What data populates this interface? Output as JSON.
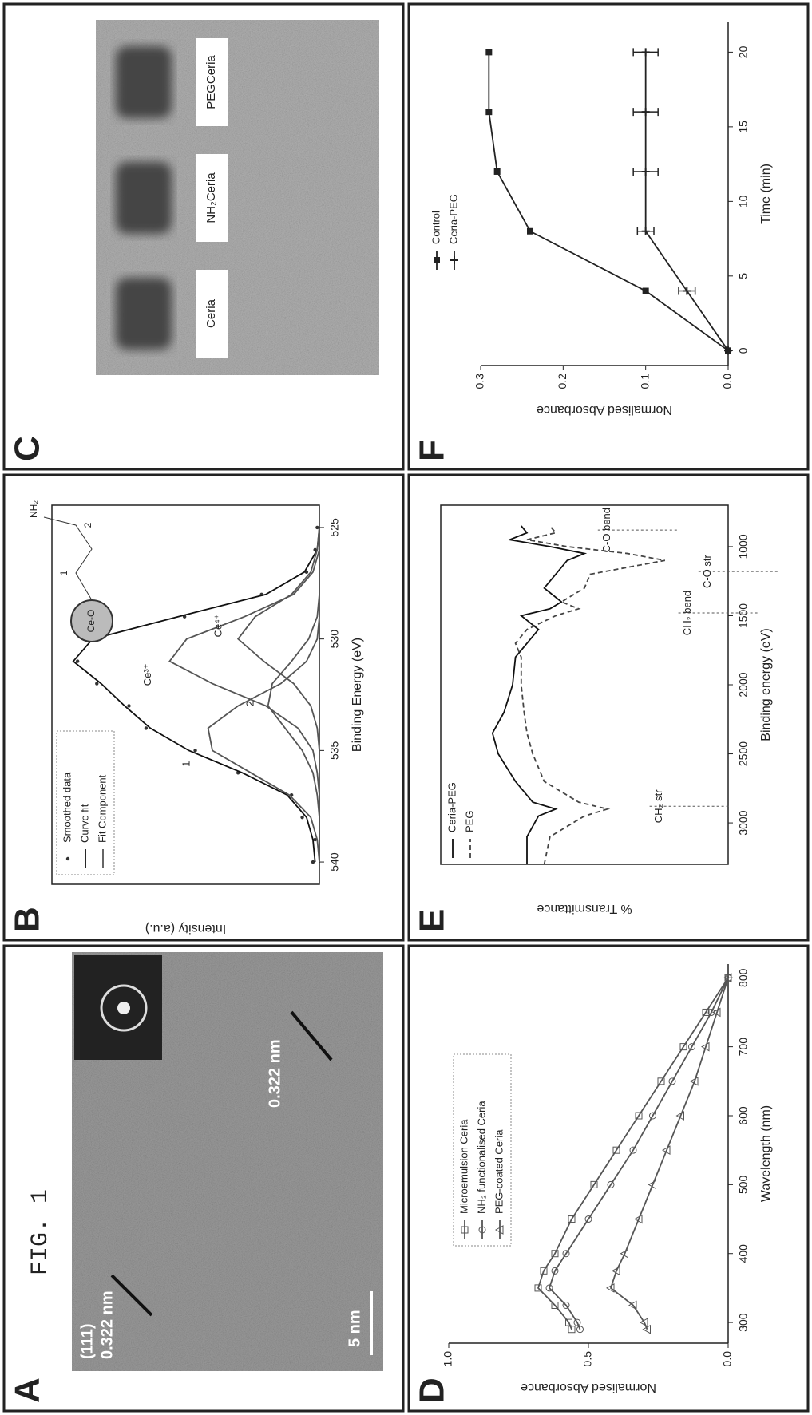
{
  "figure_label": "FIG. 1",
  "chart_data": [
    {
      "panel": "A",
      "type": "image",
      "labels": [
        "(111)",
        "0.322 nm",
        "0.322 nm",
        "5 nm"
      ]
    },
    {
      "panel": "B",
      "type": "line",
      "x_label": "Binding Energy (eV)",
      "y_label": "Intensity (a.u.)",
      "x": [
        540,
        539,
        538,
        537,
        536,
        535,
        534,
        533,
        532,
        531,
        530,
        529,
        528,
        527,
        526,
        525
      ],
      "xlim": [
        541,
        524
      ],
      "xticks": [
        540,
        535,
        530,
        525
      ],
      "ylim": [
        0,
        1.25
      ],
      "box": true,
      "series": [
        {
          "name": "Smoothed data",
          "color": "#333333",
          "marker": "dot",
          "line": false,
          "values": [
            0.03,
            0.02,
            0.08,
            0.13,
            0.38,
            0.58,
            0.81,
            0.89,
            1.04,
            1.13,
            1.08,
            0.63,
            0.27,
            0.06,
            0.02,
            0.01
          ]
        },
        {
          "name": "Curve fit",
          "color": "#111111",
          "values": [
            0.02,
            0.03,
            0.06,
            0.15,
            0.36,
            0.61,
            0.79,
            0.91,
            1.02,
            1.15,
            1.06,
            0.66,
            0.25,
            0.07,
            0.01,
            0.0
          ]
        },
        {
          "name": "Fit Component",
          "color": "#555555",
          "components": [
            [
              0,
              0.01,
              0.04,
              0.14,
              0.32,
              0.5,
              0.52,
              0.38,
              0.18,
              0.06,
              0.01,
              0,
              0,
              0,
              0,
              0
            ],
            [
              0,
              0,
              0,
              0.01,
              0.03,
              0.08,
              0.16,
              0.24,
              0.22,
              0.13,
              0.05,
              0.01,
              0,
              0,
              0,
              0
            ],
            [
              0,
              0,
              0,
              0,
              0.01,
              0.03,
              0.1,
              0.25,
              0.5,
              0.7,
              0.62,
              0.35,
              0.12,
              0.03,
              0,
              0
            ],
            [
              0,
              0,
              0,
              0,
              0,
              0,
              0.01,
              0.04,
              0.12,
              0.26,
              0.38,
              0.3,
              0.13,
              0.04,
              0.01,
              0
            ]
          ]
        }
      ],
      "annotations": [
        "1",
        "2",
        "Ce³⁺",
        "Ce⁴⁺"
      ],
      "inset_labels": [
        "Ce-O",
        "1",
        "2",
        "NH₂"
      ]
    },
    {
      "panel": "C",
      "type": "image",
      "labels": [
        "Ceria",
        "NH₂Ceria",
        "PEGCeria"
      ]
    },
    {
      "panel": "D",
      "type": "line",
      "x_label": "Wavelength (nm)",
      "y_label": "Normalised Absorbance",
      "x": [
        290,
        300,
        325,
        350,
        375,
        400,
        450,
        500,
        550,
        600,
        650,
        700,
        750,
        800
      ],
      "xlim": [
        270,
        820
      ],
      "xticks": [
        300,
        400,
        500,
        600,
        700,
        800
      ],
      "ylim": [
        0,
        1.0
      ],
      "yticks": [
        {
          "value": 0,
          "label": "0.0"
        },
        0.5,
        {
          "value": 1,
          "label": "1.0"
        }
      ],
      "box": false,
      "series": [
        {
          "name": "Microemulsion Ceria",
          "color": "#555555",
          "marker": "square",
          "values": [
            0.56,
            0.57,
            0.62,
            0.68,
            0.66,
            0.62,
            0.56,
            0.48,
            0.4,
            0.32,
            0.24,
            0.16,
            0.08,
            0.0
          ]
        },
        {
          "name": "NH₂ functionalised Ceria",
          "color": "#555555",
          "marker": "circle",
          "values": [
            0.53,
            0.54,
            0.58,
            0.64,
            0.62,
            0.58,
            0.5,
            0.42,
            0.34,
            0.27,
            0.2,
            0.13,
            0.06,
            0.0
          ]
        },
        {
          "name": "PEG-coated Ceria",
          "color": "#555555",
          "marker": "triangle",
          "values": [
            0.29,
            0.3,
            0.34,
            0.42,
            0.4,
            0.37,
            0.32,
            0.27,
            0.22,
            0.17,
            0.12,
            0.08,
            0.04,
            0.0
          ]
        }
      ]
    },
    {
      "panel": "E",
      "type": "line",
      "x_label": "Binding energy (eV)",
      "y_label": "% Transmittance",
      "x": [
        3300,
        3100,
        2950,
        2900,
        2850,
        2700,
        2500,
        2350,
        2200,
        2000,
        1800,
        1700,
        1600,
        1500,
        1450,
        1400,
        1300,
        1200,
        1100,
        1050,
        1000,
        950,
        900,
        850
      ],
      "xlim": [
        3300,
        700
      ],
      "xticks": [
        3000,
        2500,
        2000,
        1500,
        1000
      ],
      "ylim": [
        0,
        1
      ],
      "box": true,
      "series": [
        {
          "name": "Ceria-PEG",
          "color": "#111111",
          "values": [
            0.7,
            0.7,
            0.66,
            0.6,
            0.68,
            0.74,
            0.8,
            0.82,
            0.78,
            0.75,
            0.74,
            0.7,
            0.66,
            0.72,
            0.62,
            0.58,
            0.64,
            0.6,
            0.56,
            0.5,
            0.62,
            0.76,
            0.7,
            0.72
          ]
        },
        {
          "name": "PEG",
          "color": "#444444",
          "dash": "6 4",
          "values": [
            0.64,
            0.62,
            0.5,
            0.42,
            0.52,
            0.64,
            0.68,
            0.7,
            0.71,
            0.72,
            0.72,
            0.74,
            0.7,
            0.6,
            0.52,
            0.58,
            0.5,
            0.48,
            0.22,
            0.35,
            0.56,
            0.7,
            0.6,
            0.62
          ]
        }
      ],
      "annotations": [
        "CH₂ str",
        "CH₂ bend",
        "C-O str",
        "C-O bend"
      ]
    },
    {
      "panel": "F",
      "type": "line",
      "x_label": "Time (min)",
      "y_label": "Normalised Absorbance",
      "x": [
        0,
        4,
        8,
        12,
        16,
        20
      ],
      "xlim": [
        -1,
        22
      ],
      "xticks": [
        0,
        5,
        10,
        15,
        20
      ],
      "ylim": [
        0,
        0.3
      ],
      "yticks": [
        {
          "value": 0,
          "label": "0.0"
        },
        0.1,
        0.2,
        0.3
      ],
      "box": false,
      "series": [
        {
          "name": "Control",
          "color": "#222222",
          "marker": "filled-square",
          "values": [
            0,
            0.1,
            0.24,
            0.28,
            0.29,
            0.29
          ]
        },
        {
          "name": "Ceria-PEG",
          "color": "#222222",
          "marker": "plus",
          "values": [
            0,
            0.05,
            0.1,
            0.1,
            0.1,
            0.1
          ],
          "errors": [
            0,
            0.01,
            0.01,
            0.015,
            0.015,
            0.015
          ]
        }
      ]
    }
  ]
}
